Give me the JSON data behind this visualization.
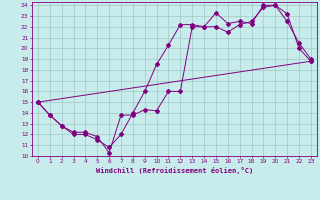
{
  "xlabel": "Windchill (Refroidissement éolien,°C)",
  "bg_color": "#c8ecec",
  "line_color": "#800080",
  "grid_color": "#a0c8c8",
  "xlim": [
    -0.5,
    23.5
  ],
  "ylim": [
    10,
    24.3
  ],
  "xticks": [
    0,
    1,
    2,
    3,
    4,
    5,
    6,
    7,
    8,
    9,
    10,
    11,
    12,
    13,
    14,
    15,
    16,
    17,
    18,
    19,
    20,
    21,
    22,
    23
  ],
  "yticks": [
    10,
    11,
    12,
    13,
    14,
    15,
    16,
    17,
    18,
    19,
    20,
    21,
    22,
    23,
    24
  ],
  "line1": {
    "x": [
      0,
      1,
      2,
      3,
      4,
      5,
      6,
      7,
      8,
      9,
      10,
      11,
      12,
      13,
      14,
      15,
      16,
      17,
      18,
      19,
      20,
      21,
      22,
      23
    ],
    "y": [
      15,
      13.8,
      12.8,
      12.2,
      12.2,
      11.8,
      10.3,
      13.8,
      13.8,
      14.3,
      14.2,
      16.0,
      16.0,
      22.0,
      22.0,
      23.3,
      22.3,
      22.5,
      22.3,
      24.0,
      24.0,
      23.2,
      20.0,
      18.8
    ]
  },
  "line2": {
    "x": [
      0,
      1,
      2,
      3,
      4,
      5,
      6,
      7,
      8,
      9,
      10,
      11,
      12,
      13,
      14,
      15,
      16,
      17,
      18,
      19,
      20,
      21,
      22,
      23
    ],
    "y": [
      15,
      13.8,
      12.8,
      12.0,
      12.0,
      11.5,
      10.8,
      12.0,
      14.0,
      16.0,
      18.5,
      20.3,
      22.2,
      22.2,
      22.0,
      22.0,
      21.5,
      22.2,
      22.5,
      23.8,
      24.0,
      22.5,
      20.5,
      19.0
    ]
  },
  "line3": {
    "x": [
      0,
      23
    ],
    "y": [
      15,
      18.8
    ]
  }
}
